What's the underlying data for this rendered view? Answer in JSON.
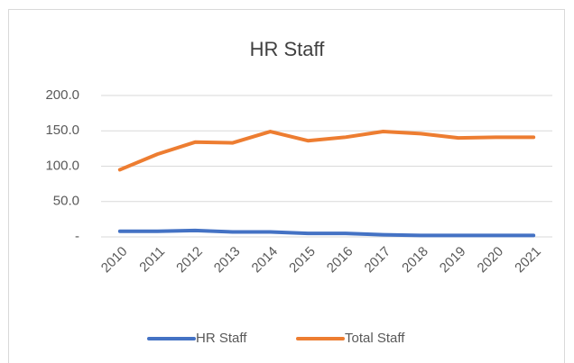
{
  "chart_data": {
    "type": "line",
    "title": "HR Staff",
    "categories": [
      "2010",
      "2011",
      "2012",
      "2013",
      "2014",
      "2015",
      "2016",
      "2017",
      "2018",
      "2019",
      "2020",
      "2021"
    ],
    "series": [
      {
        "name": "HR Staff",
        "color": "#4472c4",
        "values": [
          8,
          8,
          9,
          7,
          7,
          5,
          5,
          3,
          2,
          2,
          2,
          2
        ]
      },
      {
        "name": "Total Staff",
        "color": "#ed7d31",
        "values": [
          95,
          117,
          134,
          133,
          149,
          136,
          141,
          149,
          146,
          140,
          141,
          141
        ]
      }
    ],
    "ylim": [
      0,
      200
    ],
    "yticks": [
      {
        "value": 0,
        "label": "-"
      },
      {
        "value": 50,
        "label": "50.0"
      },
      {
        "value": 100,
        "label": "100.0"
      },
      {
        "value": 150,
        "label": "150.0"
      },
      {
        "value": 200,
        "label": "200.0"
      }
    ],
    "grid": true,
    "legend": "bottom"
  }
}
